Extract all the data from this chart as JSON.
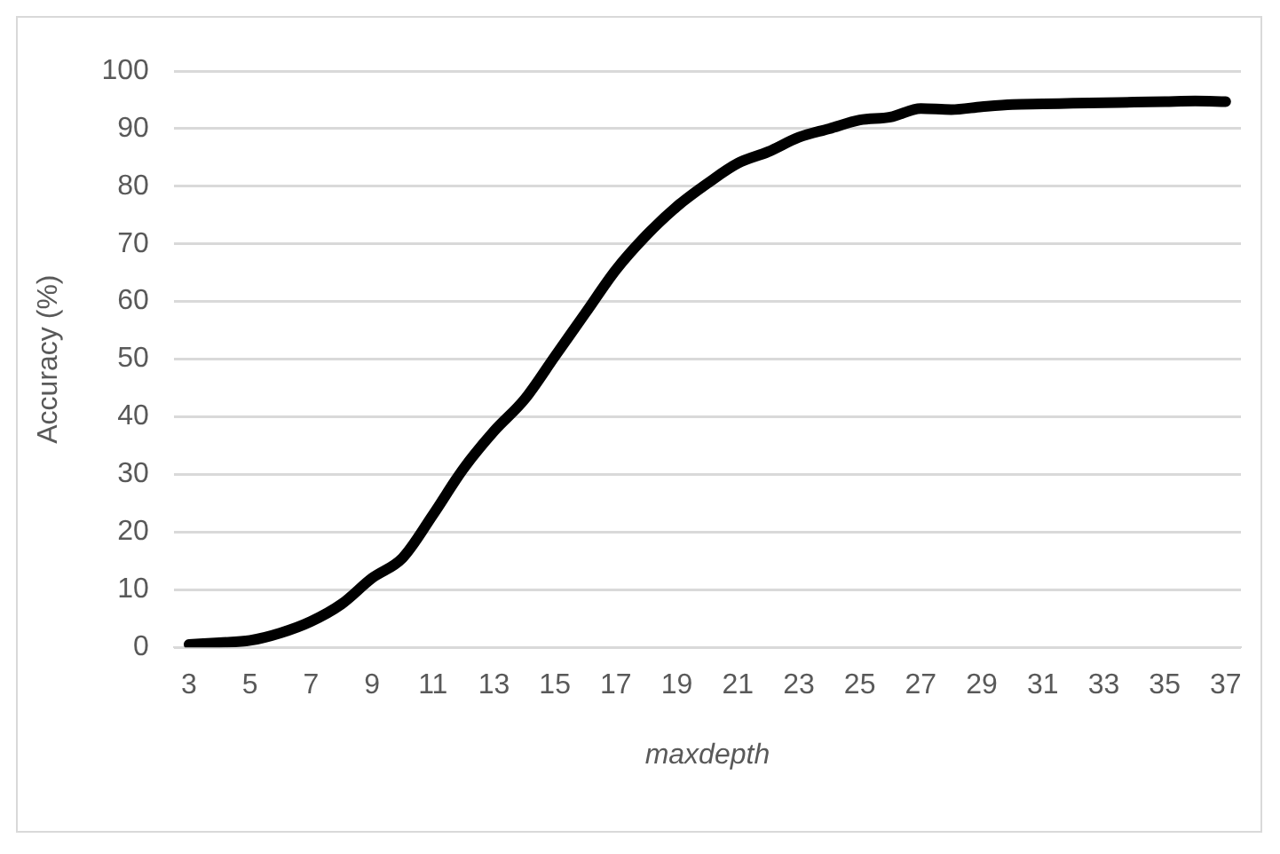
{
  "chart_data": {
    "type": "line",
    "xlabel": "maxdepth",
    "ylabel": "Accuracy (%)",
    "x": [
      3,
      4,
      5,
      6,
      7,
      8,
      9,
      10,
      11,
      12,
      13,
      14,
      15,
      16,
      17,
      18,
      19,
      20,
      21,
      22,
      23,
      24,
      25,
      26,
      27,
      28,
      29,
      30,
      31,
      32,
      33,
      34,
      35,
      36,
      37
    ],
    "xlim": [
      2.5,
      37.5
    ],
    "xticks": [
      3,
      5,
      7,
      9,
      11,
      13,
      15,
      17,
      19,
      21,
      23,
      25,
      27,
      29,
      31,
      33,
      35,
      37
    ],
    "series": [
      {
        "color": "#000000",
        "values": [
          0.5,
          0.8,
          1.2,
          2.5,
          4.5,
          7.5,
          12,
          15.5,
          23,
          31,
          37.5,
          43,
          50.5,
          58,
          65.5,
          71.5,
          76.5,
          80.5,
          84,
          86,
          88.5,
          90,
          91.5,
          92,
          93.5,
          93.3,
          93.8,
          94.2,
          94.3,
          94.4,
          94.5,
          94.6,
          94.7,
          94.8,
          94.7
        ]
      }
    ],
    "ylim": [
      0,
      100
    ],
    "yticks": [
      0,
      10,
      20,
      30,
      40,
      50,
      60,
      70,
      80,
      90,
      100
    ],
    "grid": "y",
    "legend": false,
    "marker": "none",
    "line_style": "solid"
  }
}
